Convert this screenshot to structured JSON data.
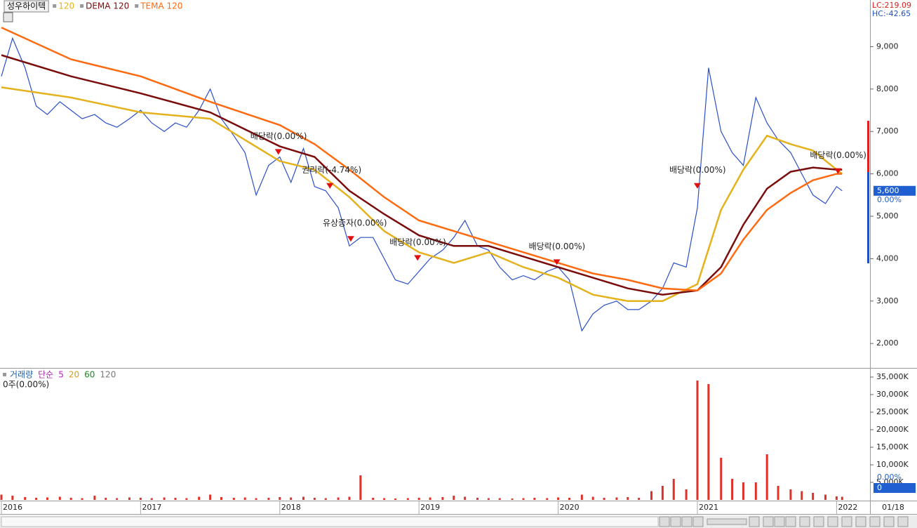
{
  "chart_data": [
    {
      "type": "line",
      "xlim": [
        2015.99,
        2022.24
      ],
      "xticks": [
        2016,
        2017,
        2018,
        2019,
        2020,
        2021,
        2022
      ],
      "ylim": [
        1440,
        10100
      ],
      "yticks": [
        {
          "value": 2000,
          "label": "2,000"
        },
        {
          "value": 3000,
          "label": "3,000"
        },
        {
          "value": 4000,
          "label": "4,000"
        },
        {
          "value": 5000,
          "label": "5,000"
        },
        {
          "value": 6000,
          "label": "6,000"
        },
        {
          "value": 7000,
          "label": "7,000"
        },
        {
          "value": 8000,
          "label": "8,000"
        },
        {
          "value": 9000,
          "label": "9,000"
        }
      ],
      "corner_label": "01/18",
      "lc_label": "LC:219.09",
      "hc_label": "HC:-42.65",
      "current_price": {
        "value": 5600,
        "label": "5,600"
      },
      "change_label": "0.00%",
      "series": [
        {
          "name": "성우하이텍",
          "color": "#2a4fc8",
          "x": [
            2016,
            2016.08,
            2016.17,
            2016.25,
            2016.33,
            2016.42,
            2016.5,
            2016.58,
            2016.67,
            2016.75,
            2016.83,
            2016.92,
            2017,
            2017.08,
            2017.17,
            2017.25,
            2017.33,
            2017.42,
            2017.5,
            2017.58,
            2017.67,
            2017.75,
            2017.83,
            2017.92,
            2018,
            2018.08,
            2018.17,
            2018.25,
            2018.33,
            2018.42,
            2018.5,
            2018.58,
            2018.67,
            2018.75,
            2018.83,
            2018.92,
            2019,
            2019.08,
            2019.17,
            2019.25,
            2019.33,
            2019.42,
            2019.5,
            2019.58,
            2019.67,
            2019.75,
            2019.83,
            2019.92,
            2020,
            2020.08,
            2020.17,
            2020.25,
            2020.33,
            2020.42,
            2020.5,
            2020.58,
            2020.67,
            2020.75,
            2020.83,
            2020.92,
            2021,
            2021.08,
            2021.17,
            2021.25,
            2021.33,
            2021.42,
            2021.5,
            2021.58,
            2021.67,
            2021.75,
            2021.83,
            2021.92,
            2022,
            2022.04
          ],
          "values": [
            8300,
            9200,
            8500,
            7600,
            7400,
            7700,
            7500,
            7300,
            7400,
            7200,
            7100,
            7300,
            7500,
            7200,
            7000,
            7200,
            7100,
            7500,
            8000,
            7300,
            6900,
            6500,
            5500,
            6200,
            6400,
            5800,
            6600,
            5700,
            5600,
            5200,
            4300,
            4500,
            4500,
            4000,
            3500,
            3400,
            3700,
            4000,
            4200,
            4500,
            4900,
            4300,
            4200,
            3800,
            3500,
            3600,
            3500,
            3700,
            3800,
            3500,
            2300,
            2700,
            2900,
            3000,
            2800,
            2800,
            3000,
            3300,
            3900,
            3800,
            5200,
            8500,
            7000,
            6500,
            6200,
            7800,
            7200,
            6800,
            6500,
            6000,
            5500,
            5300,
            5700,
            5600
          ]
        },
        {
          "name": "120",
          "color": "#e3b21c",
          "x": [
            2016,
            2016.5,
            2017,
            2017.5,
            2018,
            2018.25,
            2018.5,
            2018.75,
            2019,
            2019.25,
            2019.5,
            2019.75,
            2020,
            2020.25,
            2020.5,
            2020.75,
            2021,
            2021.17,
            2021.33,
            2021.5,
            2021.67,
            2021.83,
            2022,
            2022.04
          ],
          "values": [
            8040,
            7800,
            7450,
            7300,
            6300,
            6100,
            5450,
            4650,
            4150,
            3900,
            4150,
            3800,
            3550,
            3150,
            3000,
            3000,
            3400,
            5150,
            6100,
            6900,
            6700,
            6550,
            6100,
            6000
          ]
        },
        {
          "name": "DEMA 120",
          "color": "#7a0c0c",
          "x": [
            2016,
            2016.5,
            2017,
            2017.5,
            2018,
            2018.25,
            2018.5,
            2018.75,
            2019,
            2019.25,
            2019.5,
            2019.75,
            2020,
            2020.25,
            2020.5,
            2020.75,
            2021,
            2021.17,
            2021.33,
            2021.5,
            2021.67,
            2021.83,
            2022,
            2022.04
          ],
          "values": [
            8800,
            8300,
            7900,
            7450,
            6650,
            6400,
            5600,
            5050,
            4550,
            4300,
            4300,
            4050,
            3800,
            3550,
            3300,
            3150,
            3250,
            3800,
            4800,
            5650,
            6050,
            6150,
            6100,
            6100
          ]
        },
        {
          "name": "TEMA 120",
          "color": "#ff6a10",
          "x": [
            2016,
            2016.5,
            2017,
            2017.5,
            2018,
            2018.25,
            2018.5,
            2018.75,
            2019,
            2019.25,
            2019.5,
            2019.75,
            2020,
            2020.25,
            2020.5,
            2020.75,
            2021,
            2021.17,
            2021.33,
            2021.5,
            2021.67,
            2021.83,
            2022,
            2022.04
          ],
          "values": [
            9450,
            8700,
            8300,
            7700,
            7150,
            6700,
            6100,
            5450,
            4900,
            4650,
            4400,
            4150,
            3900,
            3650,
            3500,
            3300,
            3250,
            3650,
            4450,
            5150,
            5550,
            5850,
            6000,
            6000
          ]
        }
      ],
      "annotations": [
        {
          "text": "배당락(0.00%)",
          "x": 2017.99,
          "y": 6500
        },
        {
          "text": "권리락(-4.74%)",
          "x": 2018.36,
          "y": 5700
        },
        {
          "text": "유상증자(0.00%)",
          "x": 2018.51,
          "y": 4450
        },
        {
          "text": "배당락(0.00%)",
          "x": 2018.99,
          "y": 4000
        },
        {
          "text": "배당락(0.00%)",
          "x": 2019.99,
          "y": 3900
        },
        {
          "text": "배당락(0.00%)",
          "x": 2021.0,
          "y": 5700
        },
        {
          "text": "배당락(0.00%)",
          "x": 2022.01,
          "y": 6050
        }
      ]
    },
    {
      "type": "bar",
      "xlim": [
        2015.99,
        2022.24
      ],
      "xticks": [
        2016,
        2017,
        2018,
        2019,
        2020,
        2021,
        2022
      ],
      "ylim": [
        0,
        37000
      ],
      "yticks": [
        {
          "value": 5000,
          "label": "5,000K"
        },
        {
          "value": 10000,
          "label": "10,000K"
        },
        {
          "value": 15000,
          "label": "15,000K"
        },
        {
          "value": 20000,
          "label": "20,000K"
        },
        {
          "value": 25000,
          "label": "25,000K"
        },
        {
          "value": 30000,
          "label": "30,000K"
        },
        {
          "value": 35000,
          "label": "35,000K"
        }
      ],
      "legend": [
        {
          "name": "거래량",
          "color": "#1f5fa8"
        },
        {
          "name": "단순",
          "color": "#a020a0"
        },
        {
          "name": "5",
          "color": "#c020c0"
        },
        {
          "name": "20",
          "color": "#d4a017"
        },
        {
          "name": "60",
          "color": "#1a8a1a"
        },
        {
          "name": "120",
          "color": "#777777"
        }
      ],
      "status_text": "0주(0.00%)",
      "current_volume": {
        "value": 0,
        "label": "0"
      },
      "change_label": "0.00%",
      "series": [
        {
          "name": "거래량",
          "color": "#e0302a",
          "x": [
            2016,
            2016.08,
            2016.17,
            2016.25,
            2016.33,
            2016.42,
            2016.5,
            2016.58,
            2016.67,
            2016.75,
            2016.83,
            2016.92,
            2017,
            2017.08,
            2017.17,
            2017.25,
            2017.33,
            2017.42,
            2017.5,
            2017.58,
            2017.67,
            2017.75,
            2017.83,
            2017.92,
            2018,
            2018.08,
            2018.17,
            2018.25,
            2018.33,
            2018.42,
            2018.5,
            2018.58,
            2018.67,
            2018.75,
            2018.83,
            2018.92,
            2019,
            2019.08,
            2019.17,
            2019.25,
            2019.33,
            2019.42,
            2019.5,
            2019.58,
            2019.67,
            2019.75,
            2019.83,
            2019.92,
            2020,
            2020.08,
            2020.17,
            2020.25,
            2020.33,
            2020.42,
            2020.5,
            2020.58,
            2020.67,
            2020.75,
            2020.83,
            2020.92,
            2021,
            2021.08,
            2021.17,
            2021.25,
            2021.33,
            2021.42,
            2021.5,
            2021.58,
            2021.67,
            2021.75,
            2021.83,
            2021.92,
            2022,
            2022.04
          ],
          "values": [
            1500,
            1200,
            800,
            600,
            700,
            900,
            600,
            500,
            1200,
            600,
            500,
            700,
            600,
            500,
            700,
            600,
            500,
            900,
            1500,
            800,
            600,
            700,
            500,
            600,
            800,
            700,
            900,
            600,
            500,
            700,
            900,
            7000,
            600,
            500,
            400,
            500,
            600,
            700,
            800,
            1200,
            900,
            600,
            500,
            500,
            400,
            500,
            600,
            500,
            700,
            600,
            1500,
            900,
            600,
            700,
            800,
            600,
            2500,
            4000,
            6000,
            3000,
            34000,
            33000,
            12000,
            6000,
            5000,
            5000,
            13000,
            4000,
            3000,
            2500,
            2000,
            1500,
            1000,
            900
          ]
        }
      ]
    }
  ]
}
